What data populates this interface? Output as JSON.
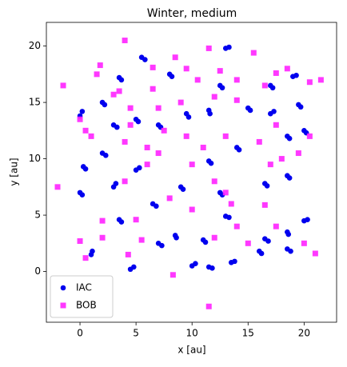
{
  "chart_data": {
    "type": "scatter",
    "title": "Winter, medium",
    "xlabel": "x [au]",
    "ylabel": "y [au]",
    "xlim": [
      -3,
      22.9
    ],
    "ylim": [
      -4.5,
      22.1
    ],
    "xticks": [
      0,
      5,
      10,
      15,
      20
    ],
    "yticks": [
      0,
      5,
      10,
      15,
      20
    ],
    "legend": "lower left",
    "series": [
      {
        "name": "IAC",
        "color": "#0000ee",
        "marker": "circle",
        "x": [
          0,
          0.2,
          0.3,
          0.5,
          0,
          0.2,
          1,
          1.1,
          2,
          2.2,
          2,
          2.3,
          3.5,
          3.7,
          3,
          3.3,
          3,
          3.2,
          3.5,
          3.7,
          5.5,
          5.8,
          5,
          5.2,
          5,
          5.3,
          4.5,
          4.8,
          6.5,
          6.8,
          7,
          7.2,
          8,
          8.2,
          7,
          7.3,
          8.5,
          8.6,
          9,
          9.2,
          10,
          10.3,
          9.5,
          9.7,
          11.5,
          11.6,
          11.5,
          11.7,
          11.5,
          11.8,
          11,
          11.2,
          12.5,
          12.7,
          12.5,
          12.7,
          13,
          13.3,
          13,
          13.3,
          13.5,
          13.8,
          14,
          14.2,
          15,
          15.2,
          17,
          17.3,
          16.5,
          16.7,
          16.5,
          16.8,
          17,
          17.2,
          18.5,
          18.7,
          18.5,
          18.7,
          18.5,
          18.8,
          19,
          19.3,
          20,
          20.2,
          20,
          20.3,
          19.5,
          19.7,
          16,
          16.2,
          18.5,
          18.6
        ],
        "y": [
          13.8,
          14.2,
          9.3,
          9.1,
          7,
          6.8,
          1.5,
          1.8,
          15,
          14.8,
          10.5,
          10.3,
          17.2,
          17.0,
          13,
          12.8,
          7.5,
          7.8,
          4.6,
          4.4,
          19,
          18.8,
          13.5,
          13.3,
          9,
          9.2,
          0.2,
          0.4,
          6,
          5.8,
          13,
          12.8,
          17.5,
          17.3,
          2.5,
          2.3,
          3.2,
          3.0,
          7.5,
          7.3,
          0.5,
          0.7,
          14,
          13.7,
          14.3,
          14.0,
          9.8,
          9.6,
          0.4,
          0.3,
          2.8,
          2.6,
          7,
          6.8,
          16.5,
          16.3,
          19.8,
          19.9,
          4.9,
          4.8,
          0.8,
          0.9,
          11,
          10.8,
          14.5,
          14.3,
          14,
          14.2,
          7.8,
          7.6,
          2.9,
          2.7,
          16.5,
          16.3,
          12,
          11.8,
          8.5,
          8.3,
          2,
          1.8,
          17.3,
          17.4,
          12.5,
          12.3,
          4.5,
          4.6,
          14.8,
          14.6,
          1.8,
          1.6,
          3.5,
          3.3
        ]
      },
      {
        "name": "BOB",
        "color": "#ff22ff",
        "marker": "square",
        "x": [
          -1.5,
          -2,
          0,
          0.5,
          0,
          0.5,
          1,
          1.5,
          1.8,
          2,
          2,
          3,
          3.5,
          4,
          4.5,
          4,
          4,
          4.5,
          5,
          4.3,
          5.5,
          6.5,
          6,
          6.5,
          6,
          7,
          7,
          8,
          8.5,
          8.3,
          9,
          9.5,
          9.5,
          10,
          10,
          10.5,
          11,
          11.5,
          11.5,
          12,
          12,
          12,
          12.5,
          13,
          13,
          14,
          13.5,
          14,
          15,
          15.5,
          16,
          16.5,
          16.5,
          17,
          17.5,
          17.5,
          18,
          17.5,
          18.5,
          19.5,
          20,
          20.5,
          21,
          21.5,
          20.5,
          14,
          7.5
        ],
        "y": [
          16.5,
          7.5,
          13.5,
          12.5,
          2.7,
          1.2,
          12,
          17.5,
          18.3,
          4.5,
          3,
          15.7,
          16,
          20.5,
          13,
          8,
          11.5,
          14.5,
          4.6,
          1.5,
          2.8,
          18.1,
          11,
          16.2,
          9.5,
          10.5,
          14.5,
          6.5,
          19,
          -0.3,
          15,
          12,
          18,
          5.5,
          9.5,
          17,
          11,
          -3.1,
          19.8,
          15.5,
          8,
          3,
          17.8,
          7,
          12,
          15.2,
          6,
          17,
          2.5,
          19.4,
          11.5,
          5.9,
          16.5,
          9.5,
          13,
          17.6,
          10,
          4,
          18,
          10.5,
          2.5,
          16.8,
          1.6,
          17,
          12,
          4,
          12.5
        ]
      }
    ]
  }
}
